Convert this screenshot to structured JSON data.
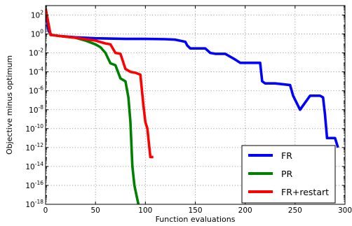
{
  "chart_data": {
    "type": "line",
    "xlabel": "Function evaluations",
    "ylabel": "Objective minus optimum",
    "xlim": [
      0,
      300
    ],
    "ylim_log10": [
      -18,
      3
    ],
    "y_scale": "log",
    "grid": true,
    "legend_position": "bottom-right",
    "x_ticks": [
      "0",
      "50",
      "100",
      "150",
      "200",
      "250",
      "300"
    ],
    "y_ticks": [
      {
        "base": "10",
        "exp": "2"
      },
      {
        "base": "10",
        "exp": "0"
      },
      {
        "base": "10",
        "exp": "-2"
      },
      {
        "base": "10",
        "exp": "-4"
      },
      {
        "base": "10",
        "exp": "-6"
      },
      {
        "base": "10",
        "exp": "-8"
      },
      {
        "base": "10",
        "exp": "-10"
      },
      {
        "base": "10",
        "exp": "-12"
      },
      {
        "base": "10",
        "exp": "-14"
      },
      {
        "base": "10",
        "exp": "-16"
      },
      {
        "base": "10",
        "exp": "-18"
      }
    ],
    "series": [
      {
        "name": "FR",
        "color": "#0000ff",
        "x": [
          0,
          3,
          6,
          15,
          30,
          50,
          80,
          100,
          120,
          130,
          140,
          142,
          145,
          150,
          160,
          165,
          170,
          180,
          190,
          195,
          200,
          215,
          217,
          220,
          230,
          245,
          248,
          255,
          265,
          275,
          278,
          280,
          282,
          290,
          293
        ],
        "y": [
          500,
          2,
          0.8,
          0.6,
          0.45,
          0.35,
          0.3,
          0.3,
          0.28,
          0.25,
          0.15,
          0.06,
          0.03,
          0.03,
          0.03,
          0.01,
          0.008,
          0.008,
          0.002,
          0.0009,
          0.0009,
          0.0009,
          1e-05,
          6e-06,
          6e-06,
          4e-06,
          3e-07,
          1e-08,
          3e-07,
          3e-07,
          2e-07,
          3e-09,
          1e-11,
          1e-11,
          1e-12
        ]
      },
      {
        "name": "PR",
        "color": "#008000",
        "x": [
          0,
          5,
          15,
          30,
          40,
          50,
          55,
          60,
          65,
          70,
          75,
          80,
          83,
          85,
          87,
          89,
          91,
          93,
          94,
          95
        ],
        "y": [
          500,
          0.8,
          0.6,
          0.4,
          0.2,
          0.08,
          0.04,
          0.01,
          0.0008,
          0.0005,
          2e-05,
          1e-05,
          2e-07,
          5e-10,
          1e-14,
          1e-16,
          1e-17,
          1e-18,
          1e-19,
          1e-19
        ]
      },
      {
        "name": "FR+restart",
        "color": "#ff0000",
        "x": [
          0,
          5,
          15,
          30,
          50,
          60,
          65,
          70,
          75,
          80,
          85,
          90,
          95,
          98,
          100,
          102,
          104,
          105,
          106,
          108
        ],
        "y": [
          500,
          0.8,
          0.6,
          0.4,
          0.2,
          0.1,
          0.08,
          0.01,
          0.008,
          0.0002,
          0.0001,
          8e-05,
          5e-05,
          3e-08,
          5e-10,
          1e-10,
          1e-12,
          1e-13,
          1e-13,
          1e-13
        ]
      }
    ]
  }
}
